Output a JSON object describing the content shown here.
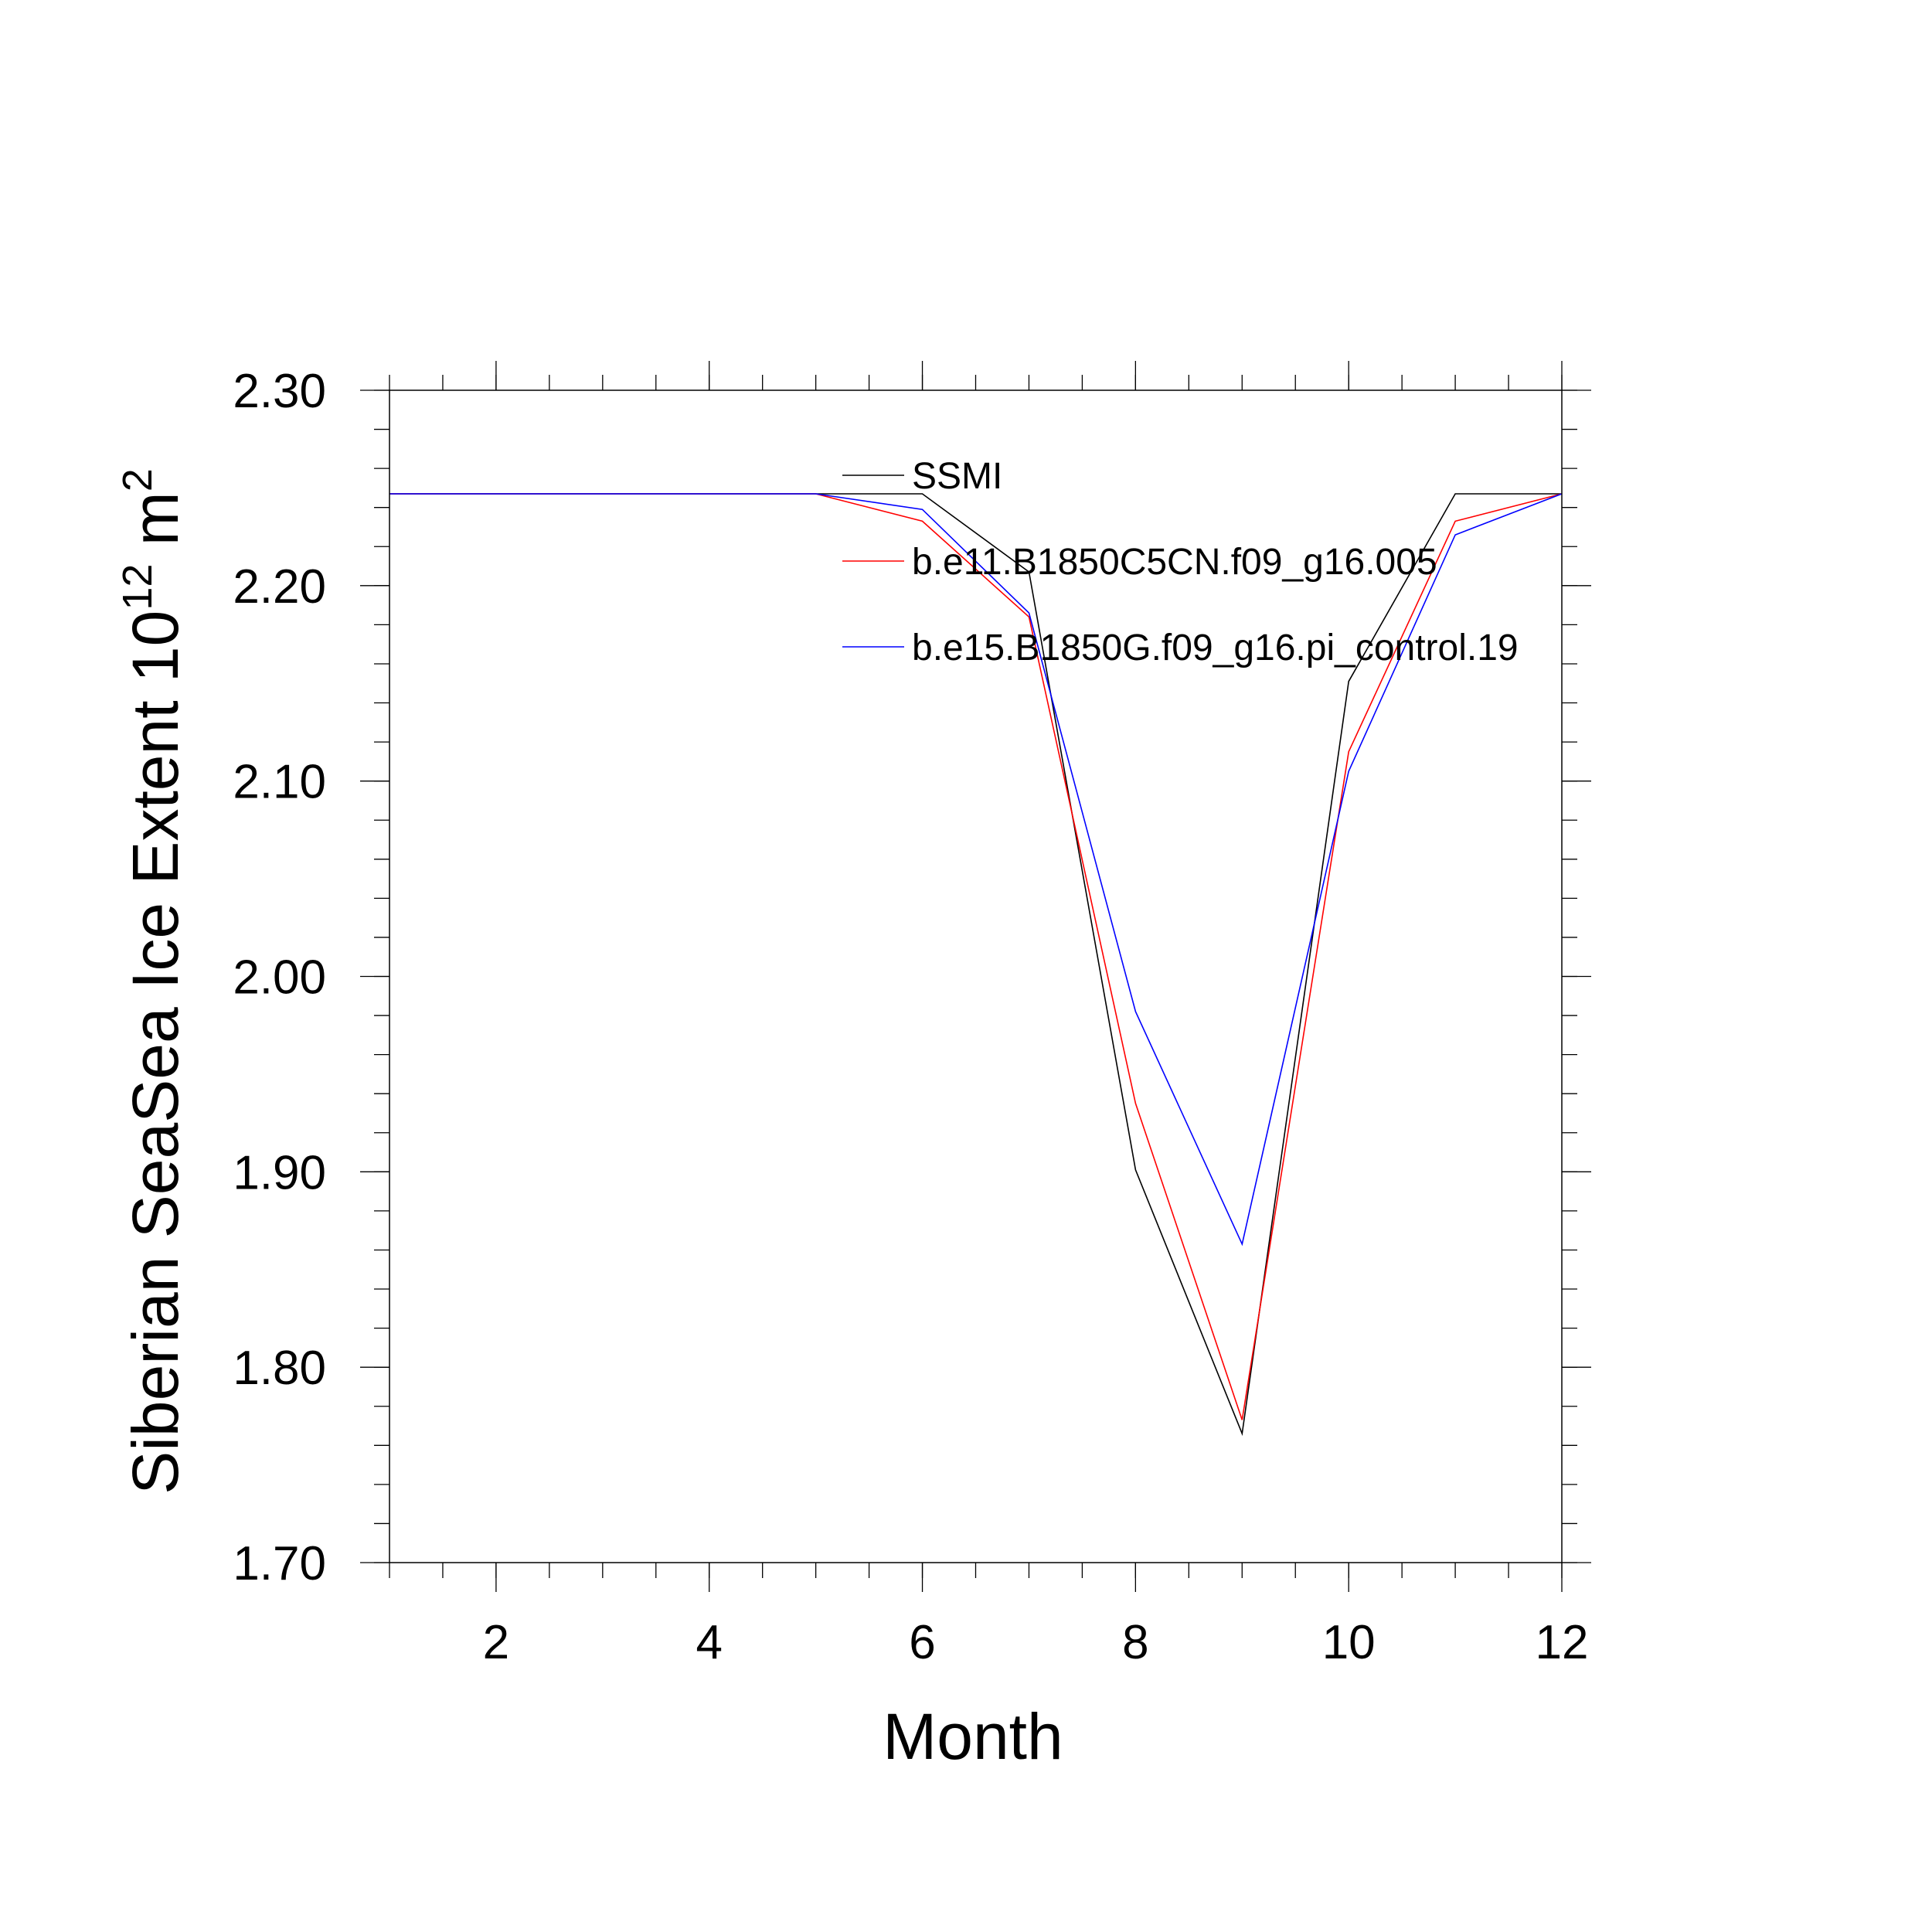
{
  "chart_data": {
    "type": "line",
    "xlabel": "Month",
    "ylabel": {
      "main": "Siberian SeaSea Ice Extent 10",
      "exp": "12",
      "unit": " m",
      "unit_exp": "2"
    },
    "xlim": [
      1,
      12
    ],
    "ylim": [
      1.7,
      2.3
    ],
    "x_ticks": [
      2,
      4,
      6,
      8,
      10,
      12
    ],
    "y_ticks": [
      "1.70",
      "1.80",
      "1.90",
      "2.00",
      "2.10",
      "2.20",
      "2.30"
    ],
    "grid": false,
    "legend_position": "top-right",
    "x": [
      1,
      2,
      3,
      4,
      5,
      6,
      7,
      8,
      9,
      10,
      11,
      12
    ],
    "series": [
      {
        "name": "SSMI",
        "color": "#000000",
        "values": [
          2.247,
          2.247,
          2.247,
          2.247,
          2.247,
          2.247,
          2.207,
          1.901,
          1.766,
          2.151,
          2.247,
          2.247
        ]
      },
      {
        "name": "b.e11.B1850C5CN.f09_g16.005",
        "color": "#ff0000",
        "values": [
          2.247,
          2.247,
          2.247,
          2.247,
          2.247,
          2.233,
          2.184,
          1.935,
          1.773,
          2.115,
          2.233,
          2.247
        ]
      },
      {
        "name": "b.e15.B1850G.f09_g16.pi_control.19",
        "color": "#0000ff",
        "values": [
          2.247,
          2.247,
          2.247,
          2.247,
          2.247,
          2.239,
          2.186,
          1.982,
          1.863,
          2.105,
          2.226,
          2.247
        ]
      }
    ]
  }
}
